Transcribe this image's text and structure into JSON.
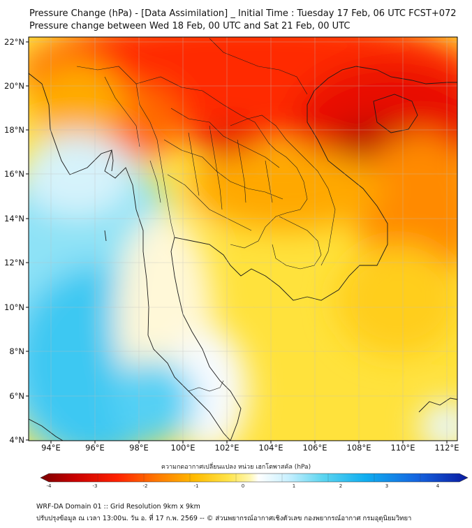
{
  "title_line1": "Pressure Change (hPa) - [Data Assimilation] _ Initial Time : Tuesday 17 Feb, 06 UTC FCST+072",
  "title_line2": "Pressure change between Wed 18 Feb, 00 UTC and Sat 21 Feb, 00 UTC",
  "axes": {
    "lon_ticks": [
      "94°E",
      "96°E",
      "98°E",
      "100°E",
      "102°E",
      "104°E",
      "106°E",
      "108°E",
      "110°E",
      "112°E"
    ],
    "lat_ticks": [
      "22°N",
      "20°N",
      "18°N",
      "16°N",
      "14°N",
      "12°N",
      "10°N",
      "8°N",
      "6°N",
      "4°N"
    ]
  },
  "map_data": {
    "region": "Mainland Southeast Asia (Thailand, Myanmar, Laos, Cambodia, Vietnam, Malay Peninsula)",
    "lon_range": [
      93,
      112.5
    ],
    "lat_range": [
      4,
      22.2
    ],
    "variable": "Pressure change (hPa)",
    "features": {
      "strong_decrease": "northern Laos / northern Vietnam / Gulf of Tonkin region (~ -3 to -4 hPa)",
      "increase": "Andaman Sea and west coast of Malay Peninsula (~ +1 to +2 hPa)"
    }
  },
  "colorbar": {
    "label": "ความกดอากาศเปลี่ยนแปลง หน่วย เฮกโตพาสคัล (hPa)",
    "ticks": [
      "-4",
      "-3",
      "-2",
      "-1",
      "0",
      "1",
      "2",
      "3",
      "4"
    ],
    "min": -4,
    "max": 4,
    "colors": [
      "#7a0000",
      "#c80000",
      "#ff2200",
      "#ff7700",
      "#ffbb00",
      "#ffe44a",
      "#fff7b0",
      "#ffffff",
      "#c8f0ff",
      "#5dd5f0",
      "#10aef0",
      "#1565e0",
      "#0a1aa0"
    ]
  },
  "footer_line1": "WRF-DA Domain 01 :: Grid Resolution 9km x 9km",
  "footer_line2": "ปรับปรุงข้อมูล ณ เวลา 13:00น. วัน อ. ที่ 17 ก.พ. 2569 -- © ส่วนพยากรณ์อากาศเชิงตัวเลข กองพยากรณ์อากาศ กรมอุตุนิยมวิทยา"
}
